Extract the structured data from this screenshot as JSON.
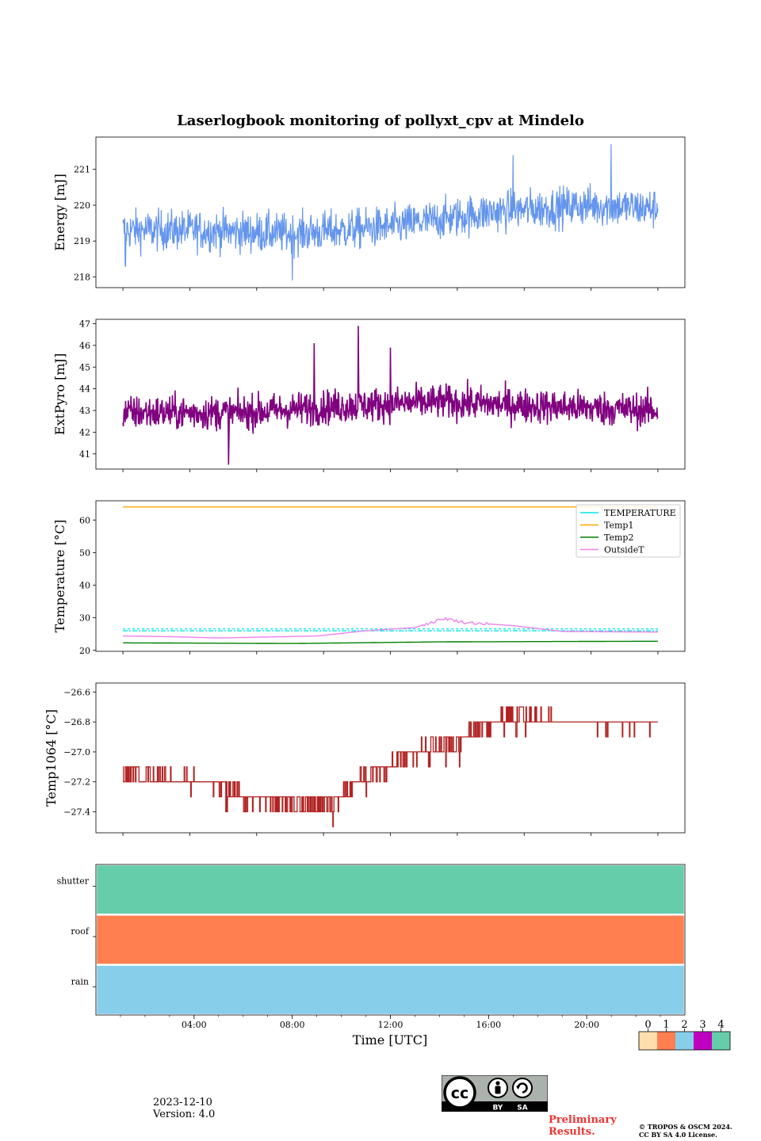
{
  "chart_data": [
    {
      "type": "line",
      "title": "Laserlogbook monitoring of pollyxt_cpv at Mindelo",
      "ylabel": "Energy [mJ]",
      "ylim": [
        217.7,
        221.9
      ],
      "yticks": [
        218,
        219,
        220,
        221
      ],
      "xlim": [
        0,
        24
      ],
      "series": [
        {
          "color": "#6495ed",
          "trend_x": [
            1.1,
            4,
            8,
            12,
            16,
            20,
            22.9
          ],
          "trend_y": [
            219.3,
            219.3,
            219.2,
            219.4,
            219.8,
            220.0,
            219.9
          ],
          "noise_amplitude": 0.6,
          "spikes": [
            {
              "x": 8.0,
              "y": 217.9
            },
            {
              "x": 21.0,
              "y": 221.7
            },
            {
              "x": 17.0,
              "y": 221.4
            },
            {
              "x": 1.2,
              "y": 218.3
            }
          ]
        }
      ]
    },
    {
      "type": "line",
      "ylabel": "ExtPyro [mJ]",
      "ylim": [
        40.3,
        47.2
      ],
      "yticks": [
        41,
        42,
        43,
        44,
        45,
        46,
        47
      ],
      "xlim": [
        0,
        24
      ],
      "series": [
        {
          "color": "#800080",
          "trend_x": [
            1.1,
            6,
            10,
            14,
            18,
            22.9
          ],
          "trend_y": [
            42.9,
            42.9,
            43.2,
            43.4,
            43.2,
            43.0
          ],
          "noise_amplitude": 0.85,
          "spikes": [
            {
              "x": 10.7,
              "y": 46.9
            },
            {
              "x": 8.9,
              "y": 46.1
            },
            {
              "x": 12.0,
              "y": 45.9
            },
            {
              "x": 5.4,
              "y": 40.5
            }
          ]
        }
      ]
    },
    {
      "type": "line",
      "ylabel": "Temperature [°C]",
      "ylim": [
        19.7,
        65.9
      ],
      "yticks": [
        20,
        30,
        40,
        50,
        60
      ],
      "xlim": [
        0,
        24
      ],
      "legend_position": "upper-right",
      "series": [
        {
          "name": "TEMPERATURE",
          "color": "#00e5ee",
          "x": [
            1.1,
            22.9
          ],
          "y": [
            26.0,
            26.0
          ],
          "style": "dashdot"
        },
        {
          "name": "Temp1",
          "color": "#ffa500",
          "x": [
            1.1,
            22.9
          ],
          "y": [
            64.0,
            64.0
          ]
        },
        {
          "name": "Temp2",
          "color": "#008000",
          "x": [
            1.1,
            8,
            14,
            22.9
          ],
          "y": [
            22.3,
            22.1,
            22.6,
            22.8
          ]
        },
        {
          "name": "OutsideT",
          "color": "#ee82ee",
          "x": [
            1.1,
            3,
            5,
            9,
            11,
            13,
            14.2,
            15,
            17,
            19,
            22.9
          ],
          "y": [
            24.4,
            24.2,
            23.8,
            24.4,
            26.0,
            27.0,
            29.8,
            28.6,
            27.6,
            25.8,
            25.6
          ]
        }
      ]
    },
    {
      "type": "line",
      "ylabel": "Temp1064 [°C]",
      "ylim": [
        -27.54,
        -26.54
      ],
      "yticks": [
        -27.4,
        -27.2,
        -27.0,
        -26.8,
        -26.6
      ],
      "ytick_labels": [
        "−27.4",
        "−27.2",
        "−27.0",
        "−26.8",
        "−26.6"
      ],
      "xlim": [
        0,
        24
      ],
      "series": [
        {
          "color": "#b22222",
          "step": 0.1,
          "trend_x": [
            1.1,
            4.5,
            6,
            8,
            9.5,
            10.5,
            12,
            13,
            14.5,
            15.5,
            17,
            19,
            22.9
          ],
          "trend_y": [
            -27.15,
            -27.2,
            -27.3,
            -27.35,
            -27.35,
            -27.2,
            -27.1,
            -27.0,
            -26.95,
            -26.85,
            -26.75,
            -26.8,
            -26.8
          ]
        }
      ]
    },
    {
      "type": "heatmap",
      "rows": [
        "shutter",
        "roof",
        "rain"
      ],
      "row_values": [
        4,
        1,
        2
      ],
      "xlim": [
        0,
        24
      ],
      "xlabel": "Time [UTC]",
      "xtick_values": [
        4,
        8,
        12,
        16,
        20
      ],
      "xtick_labels": [
        "04:00",
        "08:00",
        "12:00",
        "16:00",
        "20:00"
      ],
      "colorbar": {
        "ticks": [
          "0",
          "1",
          "2",
          "3",
          "4"
        ],
        "colors": [
          "#ffdead",
          "#ff7f50",
          "#87ceeb",
          "#c000c0",
          "#66cdaa"
        ]
      }
    }
  ],
  "footer": {
    "date": "2023-12-10",
    "version": "Version: 4.0",
    "preliminary_line1": "Preliminary",
    "preliminary_line2": "Results.",
    "copyright_line1": "© TROPOS & OSCM 2024.",
    "copyright_line2": "CC BY SA 4.0 License.",
    "license_by": "BY",
    "license_sa": "SA"
  }
}
